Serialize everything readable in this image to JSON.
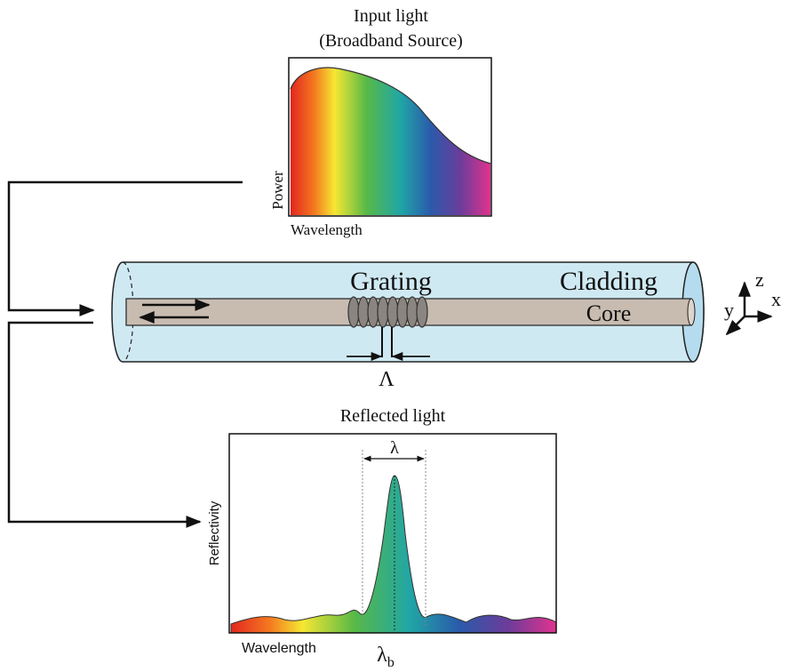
{
  "input_panel": {
    "title": "Input light",
    "subtitle": "(Broadband Source)",
    "y_label": "Power",
    "x_label": "Wavelength"
  },
  "fiber": {
    "grating": "Grating",
    "cladding": "Cladding",
    "core": "Core",
    "period": "Λ"
  },
  "axes": {
    "z": "z",
    "y": "y",
    "x": "x"
  },
  "reflected_panel": {
    "title": "Reflected light",
    "y_label": "Reflectivity",
    "x_label": "Wavelength",
    "bandwidth": "λ",
    "peak": {
      "symbol": "λ",
      "subscript": "b"
    }
  }
}
